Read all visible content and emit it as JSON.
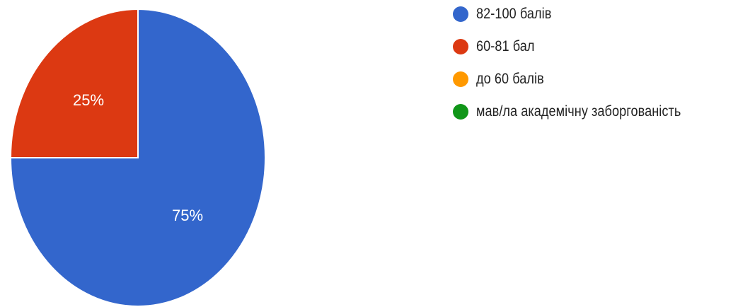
{
  "chart_data": {
    "type": "pie",
    "title": "",
    "slices": [
      {
        "label": "82-100 балів",
        "value": 75,
        "value_label": "75%",
        "color": "#3366cc"
      },
      {
        "label": "60-81 бал",
        "value": 25,
        "value_label": "25%",
        "color": "#dc3912"
      },
      {
        "label": "до 60 балів",
        "value": 0,
        "value_label": "",
        "color": "#ff9900"
      },
      {
        "label": "мав/ла академічну заборгованість",
        "value": 0,
        "value_label": "",
        "color": "#109618"
      }
    ],
    "legend_position": "right"
  }
}
